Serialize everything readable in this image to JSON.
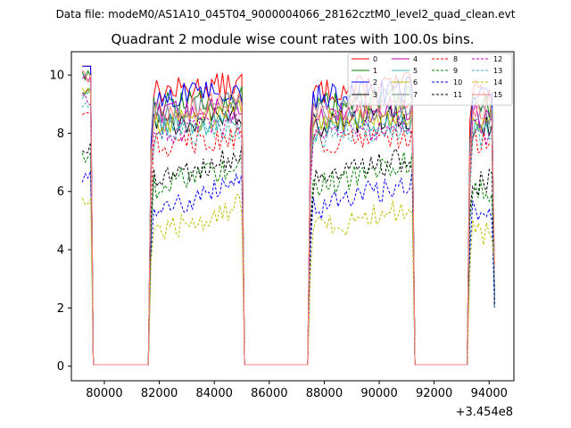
{
  "chart_data": {
    "type": "line",
    "suptitle": "Data file: modeM0/AS1A10_045T04_9000004066_28162cztM0_level2_quad_clean.evt",
    "title": "Quadrant 2 module wise count rates with 100.0s bins.",
    "xlabel": "",
    "ylabel": "",
    "x_offset_label": "+3.454e8",
    "xlim": [
      78800,
      94900
    ],
    "ylim": [
      -0.5,
      10.8
    ],
    "x_ticks": [
      80000,
      82000,
      84000,
      86000,
      88000,
      90000,
      92000,
      94000
    ],
    "x_tick_labels": [
      "80000",
      "82000",
      "84000",
      "86000",
      "88000",
      "90000",
      "92000",
      "94000"
    ],
    "y_ticks": [
      0,
      2,
      4,
      6,
      8,
      10
    ],
    "y_tick_labels": [
      "0",
      "2",
      "4",
      "6",
      "8",
      "10"
    ],
    "bin_width_s": 100,
    "segments": [
      {
        "start": 79200,
        "end": 79500
      },
      {
        "start": 81700,
        "end": 85000
      },
      {
        "start": 87500,
        "end": 91200
      },
      {
        "start": 93300,
        "end": 94200
      }
    ],
    "legend_position": "top-right",
    "series": [
      {
        "name": "0",
        "color": "#ff0000",
        "style": "solid",
        "level": 9.4
      },
      {
        "name": "1",
        "color": "#008000",
        "style": "solid",
        "level": 8.9
      },
      {
        "name": "2",
        "color": "#0000ff",
        "style": "solid",
        "level": 9.2
      },
      {
        "name": "3",
        "color": "#000000",
        "style": "solid",
        "level": 8.3
      },
      {
        "name": "4",
        "color": "#bf00bf",
        "style": "solid",
        "level": 8.6
      },
      {
        "name": "5",
        "color": "#3cb4b4",
        "style": "solid",
        "level": 8.2
      },
      {
        "name": "6",
        "color": "#bfbf00",
        "style": "solid",
        "level": 8.4
      },
      {
        "name": "7",
        "color": "#708090",
        "style": "solid",
        "level": 8.7
      },
      {
        "name": "8",
        "color": "#ff0000",
        "style": "dashed",
        "level": 7.6
      },
      {
        "name": "9",
        "color": "#008000",
        "style": "dashed",
        "level": 6.1
      },
      {
        "name": "10",
        "color": "#0000ff",
        "style": "dashed",
        "level": 5.4
      },
      {
        "name": "11",
        "color": "#000000",
        "style": "dashed",
        "level": 6.3
      },
      {
        "name": "12",
        "color": "#bf00bf",
        "style": "dashed",
        "level": 8.0
      },
      {
        "name": "13",
        "color": "#3cb4b4",
        "style": "dashed",
        "level": 7.9
      },
      {
        "name": "14",
        "color": "#bfbf00",
        "style": "dashed",
        "level": 4.6
      },
      {
        "name": "15",
        "color": "#ff8080",
        "style": "solid",
        "level": 8.8
      }
    ]
  }
}
